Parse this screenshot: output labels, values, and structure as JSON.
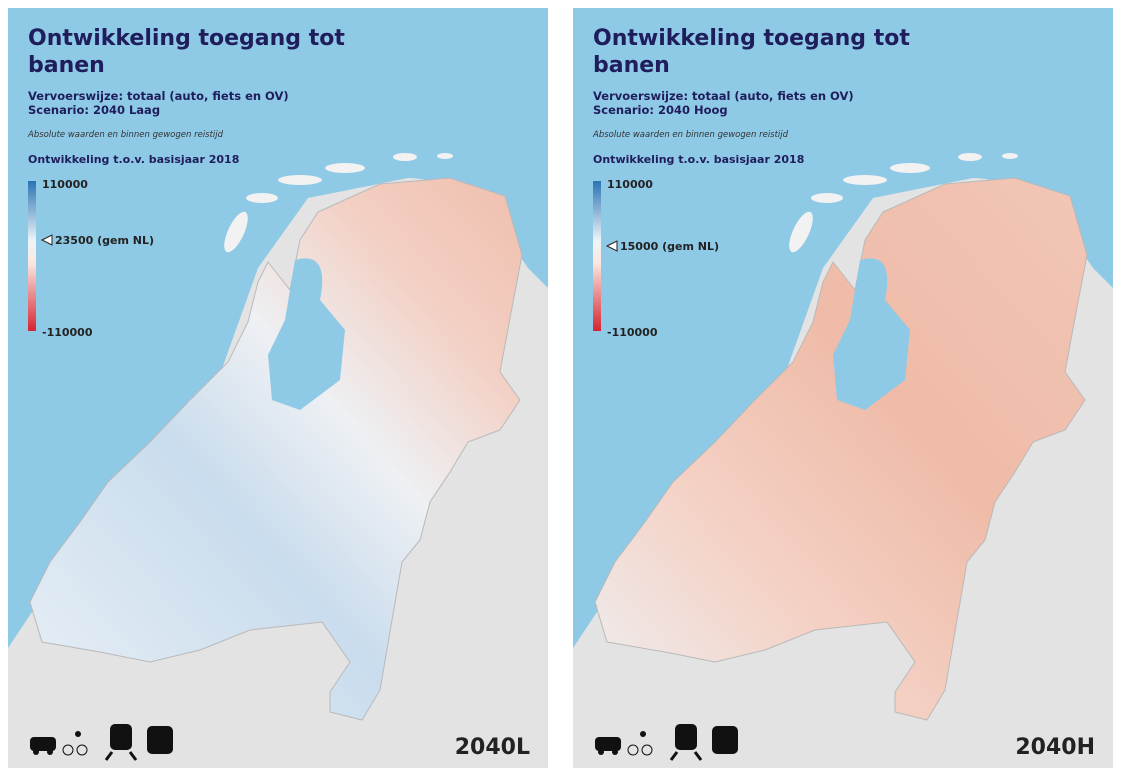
{
  "panels": [
    {
      "title": [
        "Ontwikkeling toegang tot",
        "banen"
      ],
      "subtitle": [
        "Vervoerswijze: totaal (auto, fiets en OV)",
        "Scenario: 2040 Laag"
      ],
      "note": "Absolute waarden en binnen gewogen reistijd",
      "legend": {
        "title": "Ontwikkeling t.o.v. basisjaar 2018",
        "max": "110000",
        "mean": "23500 (gem NL)",
        "min": "-110000"
      },
      "badge": "2040L"
    },
    {
      "title": [
        "Ontwikkeling toegang tot",
        "banen"
      ],
      "subtitle": [
        "Vervoerswijze: totaal (auto, fiets en OV)",
        "Scenario: 2040 Hoog"
      ],
      "note": "Absolute waarden en binnen gewogen reistijd",
      "legend": {
        "title": "Ontwikkeling t.o.v. basisjaar 2018",
        "max": "110000",
        "mean": "15000 (gem NL)",
        "min": "-110000"
      },
      "badge": "2040H"
    }
  ]
}
